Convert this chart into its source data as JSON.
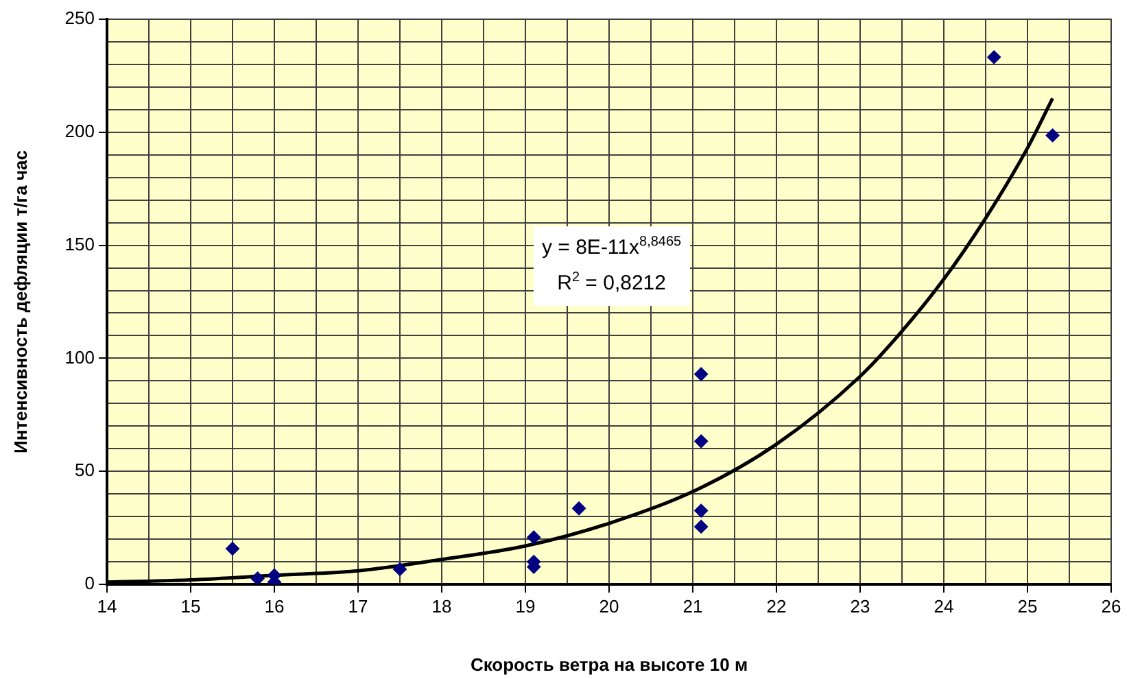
{
  "chart_data": {
    "type": "scatter",
    "xlabel": "Скорость ветра на высоте 10 м",
    "ylabel": "Интенсивность дефляции т/га час",
    "annotations": [
      "y = 8E-11x$^{8,8465}$",
      "R$^{2}$ = 0,8212"
    ],
    "series": [
      {
        "color": "#000080",
        "marker": "diamond",
        "x": [
          15.5,
          15.8,
          16.0,
          16.0,
          17.5,
          19.1,
          19.1,
          19.1,
          19.64,
          21.1,
          21.1,
          21.1,
          21.1,
          24.6,
          25.3
        ],
        "values": [
          15.8,
          2.6,
          4,
          1,
          6.7,
          20.8,
          10,
          7.7,
          33.6,
          93,
          63.3,
          32.6,
          25.5,
          233.2,
          198.6
        ]
      },
      {
        "type": "line",
        "color": "#000000",
        "marker": "none",
        "line_style": "solid",
        "x": [
          14,
          15,
          16,
          17,
          18,
          19,
          20,
          21,
          22,
          23,
          23.5,
          24,
          24.5,
          25,
          25.3
        ],
        "values": [
          1,
          2,
          4,
          6,
          11,
          17,
          27,
          41,
          62,
          92,
          112,
          135,
          162,
          193,
          215
        ]
      }
    ],
    "xlim": [
      14,
      26
    ],
    "xticks": [
      14,
      {
        "value": 14.5,
        "label": null
      },
      15,
      {
        "value": 15.5,
        "label": null
      },
      16,
      {
        "value": 16.5,
        "label": null
      },
      17,
      {
        "value": 17.5,
        "label": null
      },
      18,
      {
        "value": 18.5,
        "label": null
      },
      19,
      {
        "value": 19.5,
        "label": null
      },
      20,
      {
        "value": 20.5,
        "label": null
      },
      21,
      {
        "value": 21.5,
        "label": null
      },
      22,
      {
        "value": 22.5,
        "label": null
      },
      23,
      {
        "value": 23.5,
        "label": null
      },
      24,
      {
        "value": 24.5,
        "label": null
      },
      25,
      {
        "value": 25.5,
        "label": null
      },
      26
    ],
    "ylim": [
      0,
      250
    ],
    "yticks": [
      0,
      {
        "value": 10,
        "label": null
      },
      {
        "value": 20,
        "label": null
      },
      {
        "value": 30,
        "label": null
      },
      {
        "value": 40,
        "label": null
      },
      50,
      {
        "value": 60,
        "label": null
      },
      {
        "value": 70,
        "label": null
      },
      {
        "value": 80,
        "label": null
      },
      {
        "value": 90,
        "label": null
      },
      100,
      {
        "value": 110,
        "label": null
      },
      {
        "value": 120,
        "label": null
      },
      {
        "value": 130,
        "label": null
      },
      {
        "value": 140,
        "label": null
      },
      150,
      {
        "value": 160,
        "label": null
      },
      {
        "value": 170,
        "label": null
      },
      {
        "value": 180,
        "label": null
      },
      {
        "value": 190,
        "label": null
      },
      200,
      {
        "value": 210,
        "label": null
      },
      {
        "value": 220,
        "label": null
      },
      {
        "value": 230,
        "label": null
      },
      {
        "value": 240,
        "label": null
      },
      250
    ],
    "grid": true,
    "legend": false
  }
}
